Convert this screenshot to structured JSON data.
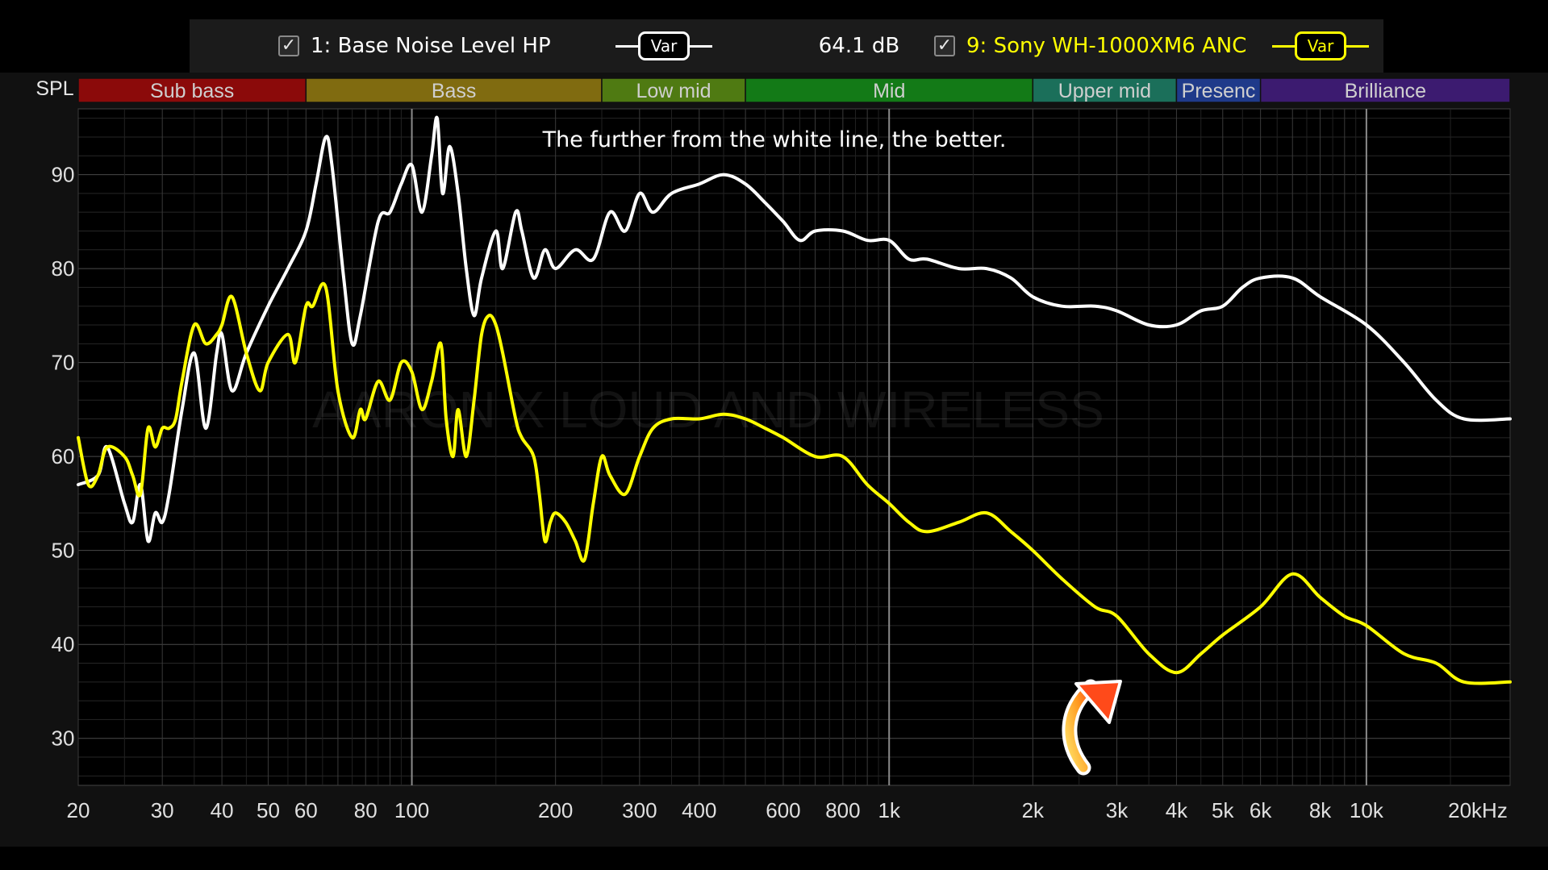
{
  "toolbar": {
    "trace1": {
      "label": "1: Base Noise Level HP",
      "checked": "✓",
      "var_label": "Var",
      "color": "#ffffff"
    },
    "level": "64.1 dB",
    "trace2": {
      "label": "9: Sony WH-1000XM6 ANC",
      "checked": "✓",
      "var_label": "Var",
      "color": "#ffff00"
    }
  },
  "chart_data": {
    "type": "line",
    "ylabel": "SPL",
    "xscale": "log",
    "xlim": [
      20,
      20000
    ],
    "ylim": [
      25,
      97
    ],
    "grid": true,
    "annotation": "The further from the white line, the better.",
    "watermark": "AARON X LOUD AND WIRELESS",
    "y_ticks": [
      30,
      40,
      50,
      60,
      70,
      80,
      90
    ],
    "x_ticks": [
      {
        "v": 20,
        "t": "20"
      },
      {
        "v": 30,
        "t": "30"
      },
      {
        "v": 40,
        "t": "40"
      },
      {
        "v": 50,
        "t": "50"
      },
      {
        "v": 60,
        "t": "60"
      },
      {
        "v": 80,
        "t": "80"
      },
      {
        "v": 100,
        "t": "100"
      },
      {
        "v": 200,
        "t": "200"
      },
      {
        "v": 300,
        "t": "300"
      },
      {
        "v": 400,
        "t": "400"
      },
      {
        "v": 600,
        "t": "600"
      },
      {
        "v": 800,
        "t": "800"
      },
      {
        "v": 1000,
        "t": "1k"
      },
      {
        "v": 2000,
        "t": "2k"
      },
      {
        "v": 3000,
        "t": "3k"
      },
      {
        "v": 4000,
        "t": "4k"
      },
      {
        "v": 5000,
        "t": "5k"
      },
      {
        "v": 6000,
        "t": "6k"
      },
      {
        "v": 8000,
        "t": "8k"
      },
      {
        "v": 10000,
        "t": "10k"
      },
      {
        "v": 20000,
        "t": "20kHz"
      }
    ],
    "bands": [
      {
        "name": "Sub bass",
        "from": 20,
        "to": 60,
        "color": "#8b0a0a"
      },
      {
        "name": "Bass",
        "from": 60,
        "to": 250,
        "color": "#806b10"
      },
      {
        "name": "Low mid",
        "from": 250,
        "to": 500,
        "color": "#4f7a12"
      },
      {
        "name": "Mid",
        "from": 500,
        "to": 2000,
        "color": "#137a17"
      },
      {
        "name": "Upper mid",
        "from": 2000,
        "to": 4000,
        "color": "#1b6f5a"
      },
      {
        "name": "Presenc",
        "from": 4000,
        "to": 6000,
        "color": "#1f3a8a"
      },
      {
        "name": "Brilliance",
        "from": 6000,
        "to": 20000,
        "color": "#3c1b70"
      }
    ],
    "series": [
      {
        "name": "1: Base Noise Level HP",
        "color": "#ffffff",
        "points": [
          [
            20,
            57
          ],
          [
            22,
            58
          ],
          [
            23,
            61
          ],
          [
            25,
            55
          ],
          [
            26,
            53
          ],
          [
            27,
            57
          ],
          [
            28,
            51
          ],
          [
            29,
            54
          ],
          [
            30,
            53
          ],
          [
            31,
            56
          ],
          [
            33,
            65
          ],
          [
            35,
            71
          ],
          [
            37,
            63
          ],
          [
            39,
            71
          ],
          [
            40,
            73
          ],
          [
            42,
            67
          ],
          [
            45,
            71
          ],
          [
            50,
            76
          ],
          [
            55,
            80
          ],
          [
            60,
            84
          ],
          [
            63,
            89
          ],
          [
            66,
            94
          ],
          [
            68,
            91
          ],
          [
            72,
            79
          ],
          [
            75,
            72
          ],
          [
            78,
            75
          ],
          [
            85,
            85
          ],
          [
            90,
            86
          ],
          [
            95,
            89
          ],
          [
            100,
            91
          ],
          [
            105,
            86
          ],
          [
            110,
            92
          ],
          [
            113,
            96
          ],
          [
            116,
            88
          ],
          [
            120,
            93
          ],
          [
            125,
            88
          ],
          [
            130,
            80
          ],
          [
            135,
            75
          ],
          [
            140,
            79
          ],
          [
            150,
            84
          ],
          [
            155,
            80
          ],
          [
            165,
            86
          ],
          [
            170,
            84
          ],
          [
            180,
            79
          ],
          [
            190,
            82
          ],
          [
            200,
            80
          ],
          [
            220,
            82
          ],
          [
            240,
            81
          ],
          [
            260,
            86
          ],
          [
            280,
            84
          ],
          [
            300,
            88
          ],
          [
            320,
            86
          ],
          [
            350,
            88
          ],
          [
            400,
            89
          ],
          [
            450,
            90
          ],
          [
            500,
            89
          ],
          [
            550,
            87
          ],
          [
            600,
            85
          ],
          [
            650,
            83
          ],
          [
            700,
            84
          ],
          [
            800,
            84
          ],
          [
            900,
            83
          ],
          [
            1000,
            83
          ],
          [
            1100,
            81
          ],
          [
            1200,
            81
          ],
          [
            1400,
            80
          ],
          [
            1600,
            80
          ],
          [
            1800,
            79
          ],
          [
            2000,
            77
          ],
          [
            2300,
            76
          ],
          [
            2700,
            76
          ],
          [
            3000,
            75.5
          ],
          [
            3500,
            74
          ],
          [
            4000,
            74
          ],
          [
            4500,
            75.5
          ],
          [
            5000,
            76
          ],
          [
            5500,
            78
          ],
          [
            6000,
            79
          ],
          [
            7000,
            79
          ],
          [
            8000,
            77
          ],
          [
            10000,
            74
          ],
          [
            12000,
            70
          ],
          [
            14000,
            66
          ],
          [
            16000,
            64
          ],
          [
            20000,
            64
          ]
        ]
      },
      {
        "name": "9: Sony WH-1000XM6 ANC",
        "color": "#ffff00",
        "points": [
          [
            20,
            62
          ],
          [
            21,
            57
          ],
          [
            22,
            58
          ],
          [
            23,
            61
          ],
          [
            25,
            60
          ],
          [
            26,
            58
          ],
          [
            27,
            56
          ],
          [
            28,
            63
          ],
          [
            29,
            61
          ],
          [
            30,
            63
          ],
          [
            31,
            63
          ],
          [
            32,
            64
          ],
          [
            33,
            68
          ],
          [
            35,
            74
          ],
          [
            37,
            72
          ],
          [
            39,
            73
          ],
          [
            40,
            74
          ],
          [
            42,
            77
          ],
          [
            45,
            71
          ],
          [
            48,
            67
          ],
          [
            50,
            70
          ],
          [
            55,
            73
          ],
          [
            57,
            70
          ],
          [
            60,
            76
          ],
          [
            62,
            76
          ],
          [
            66,
            78
          ],
          [
            70,
            67
          ],
          [
            75,
            62
          ],
          [
            78,
            65
          ],
          [
            80,
            64
          ],
          [
            85,
            68
          ],
          [
            90,
            66
          ],
          [
            95,
            70
          ],
          [
            100,
            69
          ],
          [
            105,
            65
          ],
          [
            110,
            68
          ],
          [
            115,
            72
          ],
          [
            118,
            64
          ],
          [
            122,
            60
          ],
          [
            125,
            65
          ],
          [
            130,
            60
          ],
          [
            135,
            66
          ],
          [
            140,
            73
          ],
          [
            145,
            75
          ],
          [
            150,
            74
          ],
          [
            155,
            71
          ],
          [
            165,
            64
          ],
          [
            170,
            62
          ],
          [
            180,
            60
          ],
          [
            185,
            56
          ],
          [
            190,
            51
          ],
          [
            195,
            53
          ],
          [
            200,
            54
          ],
          [
            210,
            53
          ],
          [
            220,
            51
          ],
          [
            230,
            49
          ],
          [
            240,
            55
          ],
          [
            250,
            60
          ],
          [
            260,
            58
          ],
          [
            280,
            56
          ],
          [
            300,
            60
          ],
          [
            320,
            63
          ],
          [
            350,
            64
          ],
          [
            400,
            64
          ],
          [
            450,
            64.5
          ],
          [
            500,
            64
          ],
          [
            550,
            63
          ],
          [
            600,
            62
          ],
          [
            700,
            60
          ],
          [
            800,
            60
          ],
          [
            900,
            57
          ],
          [
            1000,
            55
          ],
          [
            1100,
            53
          ],
          [
            1200,
            52
          ],
          [
            1400,
            53
          ],
          [
            1600,
            54
          ],
          [
            1800,
            52
          ],
          [
            2000,
            50
          ],
          [
            2300,
            47
          ],
          [
            2700,
            44
          ],
          [
            3000,
            43
          ],
          [
            3500,
            39
          ],
          [
            4000,
            37
          ],
          [
            4500,
            39
          ],
          [
            5000,
            41
          ],
          [
            6000,
            44
          ],
          [
            7000,
            47.5
          ],
          [
            8000,
            45
          ],
          [
            9000,
            43
          ],
          [
            10000,
            42
          ],
          [
            12000,
            39
          ],
          [
            14000,
            38
          ],
          [
            16000,
            36
          ],
          [
            20000,
            36
          ]
        ]
      }
    ]
  }
}
